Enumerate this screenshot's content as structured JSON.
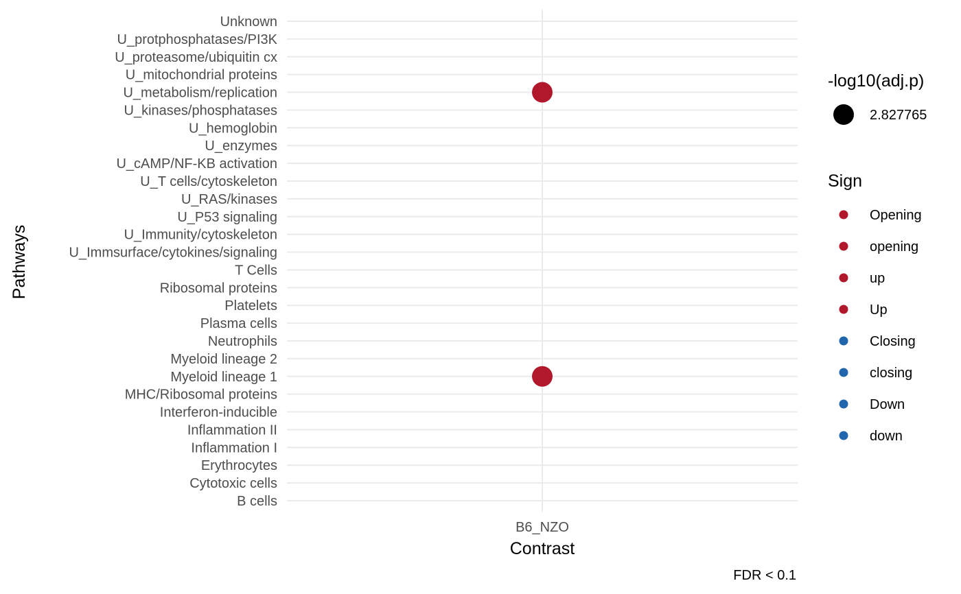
{
  "chart_data": {
    "type": "scatter",
    "xlabel": "Contrast",
    "ylabel": "Pathways",
    "caption": "FDR < 0.1",
    "x_categories": [
      "B6_NZO"
    ],
    "y_categories": [
      "B cells",
      "Cytotoxic cells",
      "Erythrocytes",
      "Inflammation I",
      "Inflammation II",
      "Interferon-inducible",
      "MHC/Ribosomal proteins",
      "Myeloid lineage 1",
      "Myeloid lineage 2",
      "Neutrophils",
      "Plasma cells",
      "Platelets",
      "Ribosomal proteins",
      "T Cells",
      "U_Immsurface/cytokines/signaling",
      "U_Immunity/cytoskeleton",
      "U_P53 signaling",
      "U_RAS/kinases",
      "U_T cells/cytoskeleton",
      "U_cAMP/NF-KB activation",
      "U_enzymes",
      "U_hemoglobin",
      "U_kinases/phosphatases",
      "U_metabolism/replication",
      "U_mitochondrial proteins",
      "U_proteasome/ubiquitin cx",
      "U_protphosphatases/PI3K",
      "Unknown"
    ],
    "points": [
      {
        "x": "B6_NZO",
        "y": "U_metabolism/replication",
        "size": 2.827765,
        "sign": "Opening"
      },
      {
        "x": "B6_NZO",
        "y": "Myeloid lineage 1",
        "size": 2.827765,
        "sign": "Opening"
      }
    ],
    "grid": true,
    "legend_position": "right",
    "size_legend": {
      "title": "-log10(adj.p)",
      "entries": [
        "2.827765"
      ]
    },
    "color_legend": {
      "title": "Sign",
      "entries": [
        {
          "label": "Opening",
          "color": "#b2182b"
        },
        {
          "label": "opening",
          "color": "#b2182b"
        },
        {
          "label": "up",
          "color": "#b2182b"
        },
        {
          "label": "Up",
          "color": "#b2182b"
        },
        {
          "label": "Closing",
          "color": "#2166ac"
        },
        {
          "label": "closing",
          "color": "#2166ac"
        },
        {
          "label": "Down",
          "color": "#2166ac"
        },
        {
          "label": "down",
          "color": "#2166ac"
        }
      ]
    },
    "colors": {
      "opening": "#b2182b",
      "closing": "#2166ac",
      "grid": "#ebebeb",
      "size_key": "#000000"
    }
  }
}
